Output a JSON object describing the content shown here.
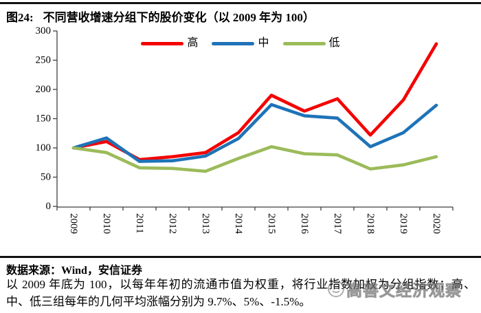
{
  "title": {
    "prefix": "图24:",
    "text": "不同营收增速分组下的股价变化（以 2009 年为 100）"
  },
  "chart_data": {
    "type": "line",
    "categories": [
      "2009",
      "2010",
      "2011",
      "2012",
      "2013",
      "2014",
      "2015",
      "2016",
      "2017",
      "2018",
      "2019",
      "2020"
    ],
    "series": [
      {
        "key": "high",
        "name": "高",
        "color": "#f40000",
        "values": [
          100,
          111,
          80,
          85,
          92,
          126,
          190,
          163,
          184,
          122,
          182,
          278
        ]
      },
      {
        "key": "mid",
        "name": "中",
        "color": "#1e73b8",
        "values": [
          100,
          117,
          77,
          78,
          86,
          116,
          174,
          155,
          151,
          102,
          126,
          173
        ]
      },
      {
        "key": "low",
        "name": "低",
        "color": "#9bbb59",
        "values": [
          100,
          92,
          66,
          65,
          60,
          82,
          102,
          90,
          88,
          64,
          71,
          85
        ]
      }
    ],
    "title": "不同营收增速分组下的股价变化（以 2009 年为 100）",
    "xlabel": "",
    "ylabel": "",
    "ylim": [
      0,
      300
    ],
    "y_ticks": [
      0,
      50,
      100,
      150,
      200,
      250,
      300
    ],
    "grid": false,
    "legend_position": "top-center",
    "axis_color": "#3f3f3f"
  },
  "footer": {
    "source_label": "数据来源：Wind，安信证券",
    "note": "以 2009 年底为 100，以每年年初的流通市值为权重，将行业指数加权为分组指数；高、中、低三组每年的几何平均涨幅分别为 9.7%、5%、-1.5%。"
  },
  "watermark": {
    "text": "高善文经济观察"
  }
}
